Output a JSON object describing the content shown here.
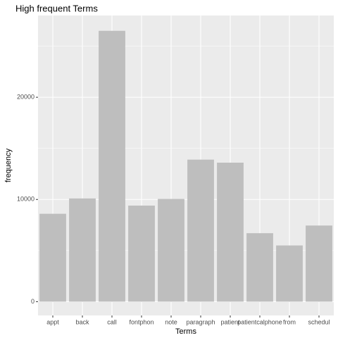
{
  "chart_data": {
    "type": "bar",
    "title": "High frequent Terms",
    "x_label": "Terms",
    "y_label": "frequency",
    "categories": [
      "appt",
      "back",
      "call",
      "fontphon",
      "note",
      "paragraph",
      "patient",
      "patientcalphone",
      "from",
      "schedul"
    ],
    "values": [
      8600,
      10100,
      26500,
      9400,
      10050,
      13900,
      13600,
      6700,
      5500,
      7450
    ],
    "color": "#bebebe",
    "ylim": [
      -1350,
      28000
    ],
    "yticks": [
      0,
      10000,
      20000
    ],
    "grid": true
  }
}
